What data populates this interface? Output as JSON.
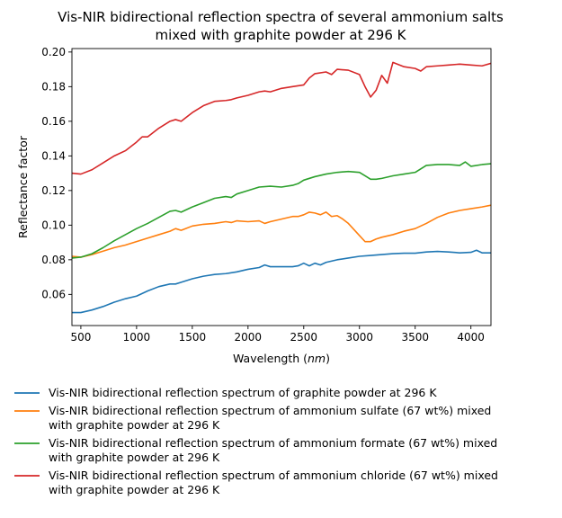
{
  "chart_data": {
    "type": "line",
    "title": "Vis-NIR bidirectional reflection spectra of several ammonium salts mixed with graphite powder at 296 K",
    "title_lines": [
      "Vis-NIR bidirectional reflection spectra of several ammonium salts",
      "mixed with graphite powder at 296 K"
    ],
    "xlabel": "Wavelength (",
    "xlabel_italic": "nm",
    "xlabel_close": ")",
    "ylabel": "Reflectance factor",
    "xlim": [
      420,
      4180
    ],
    "ylim": [
      0.042,
      0.202
    ],
    "xticks": [
      500,
      1000,
      1500,
      2000,
      2500,
      3000,
      3500,
      4000
    ],
    "yticks": [
      0.06,
      0.08,
      0.1,
      0.12,
      0.14,
      0.16,
      0.18,
      0.2
    ],
    "ytick_labels": [
      "0.06",
      "0.08",
      "0.10",
      "0.12",
      "0.14",
      "0.16",
      "0.18",
      "0.20"
    ],
    "grid": false,
    "legend_placement": "below-plot",
    "series": [
      {
        "name": "Vis-NIR bidirectional reflection spectrum of graphite powder at 296 K",
        "legend_lines": [
          "Vis-NIR bidirectional reflection spectrum of graphite powder at 296 K"
        ],
        "color": "#1f77b4",
        "points": [
          [
            420,
            0.0495
          ],
          [
            500,
            0.0495
          ],
          [
            600,
            0.051
          ],
          [
            700,
            0.053
          ],
          [
            800,
            0.0555
          ],
          [
            900,
            0.0575
          ],
          [
            1000,
            0.059
          ],
          [
            1100,
            0.062
          ],
          [
            1200,
            0.0645
          ],
          [
            1300,
            0.066
          ],
          [
            1350,
            0.066
          ],
          [
            1400,
            0.067
          ],
          [
            1500,
            0.069
          ],
          [
            1600,
            0.0705
          ],
          [
            1700,
            0.0715
          ],
          [
            1800,
            0.072
          ],
          [
            1900,
            0.073
          ],
          [
            2000,
            0.0745
          ],
          [
            2100,
            0.0755
          ],
          [
            2150,
            0.077
          ],
          [
            2200,
            0.076
          ],
          [
            2300,
            0.076
          ],
          [
            2400,
            0.076
          ],
          [
            2450,
            0.0765
          ],
          [
            2500,
            0.078
          ],
          [
            2550,
            0.0765
          ],
          [
            2600,
            0.078
          ],
          [
            2650,
            0.077
          ],
          [
            2700,
            0.0785
          ],
          [
            2800,
            0.08
          ],
          [
            2900,
            0.081
          ],
          [
            3000,
            0.082
          ],
          [
            3100,
            0.0825
          ],
          [
            3200,
            0.083
          ],
          [
            3300,
            0.0835
          ],
          [
            3400,
            0.0838
          ],
          [
            3500,
            0.0838
          ],
          [
            3600,
            0.0845
          ],
          [
            3700,
            0.0848
          ],
          [
            3800,
            0.0845
          ],
          [
            3900,
            0.084
          ],
          [
            4000,
            0.0843
          ],
          [
            4050,
            0.0855
          ],
          [
            4100,
            0.084
          ],
          [
            4180,
            0.084
          ]
        ]
      },
      {
        "name": "Vis-NIR bidirectional reflection spectrum of ammonium sulfate (67 wt%) mixed with graphite powder at 296 K",
        "legend_lines": [
          "Vis-NIR bidirectional reflection spectrum of ammonium sulfate (67 wt%) mixed",
          "with graphite powder at 296 K"
        ],
        "color": "#ff7f0e",
        "points": [
          [
            420,
            0.082
          ],
          [
            500,
            0.0815
          ],
          [
            600,
            0.083
          ],
          [
            700,
            0.085
          ],
          [
            800,
            0.087
          ],
          [
            900,
            0.0885
          ],
          [
            1000,
            0.0905
          ],
          [
            1100,
            0.0925
          ],
          [
            1200,
            0.0945
          ],
          [
            1300,
            0.0965
          ],
          [
            1350,
            0.098
          ],
          [
            1400,
            0.097
          ],
          [
            1500,
            0.0995
          ],
          [
            1600,
            0.1005
          ],
          [
            1700,
            0.101
          ],
          [
            1800,
            0.102
          ],
          [
            1850,
            0.1015
          ],
          [
            1900,
            0.1025
          ],
          [
            2000,
            0.102
          ],
          [
            2100,
            0.1025
          ],
          [
            2150,
            0.101
          ],
          [
            2200,
            0.102
          ],
          [
            2300,
            0.1035
          ],
          [
            2400,
            0.105
          ],
          [
            2450,
            0.105
          ],
          [
            2500,
            0.106
          ],
          [
            2550,
            0.1075
          ],
          [
            2600,
            0.107
          ],
          [
            2650,
            0.106
          ],
          [
            2700,
            0.1075
          ],
          [
            2750,
            0.105
          ],
          [
            2800,
            0.1055
          ],
          [
            2850,
            0.1035
          ],
          [
            2900,
            0.101
          ],
          [
            2950,
            0.0975
          ],
          [
            3000,
            0.094
          ],
          [
            3050,
            0.0905
          ],
          [
            3100,
            0.0905
          ],
          [
            3150,
            0.092
          ],
          [
            3200,
            0.093
          ],
          [
            3300,
            0.0945
          ],
          [
            3400,
            0.0965
          ],
          [
            3500,
            0.098
          ],
          [
            3600,
            0.101
          ],
          [
            3700,
            0.1045
          ],
          [
            3800,
            0.107
          ],
          [
            3900,
            0.1085
          ],
          [
            4000,
            0.1095
          ],
          [
            4100,
            0.1105
          ],
          [
            4180,
            0.1115
          ]
        ]
      },
      {
        "name": "Vis-NIR bidirectional reflection spectrum of ammonium formate (67 wt%) mixed with graphite powder at 296 K",
        "legend_lines": [
          "Vis-NIR bidirectional reflection spectrum of ammonium formate (67 wt%) mixed",
          "with graphite powder at 296 K"
        ],
        "color": "#2ca02c",
        "points": [
          [
            420,
            0.081
          ],
          [
            500,
            0.0815
          ],
          [
            600,
            0.0835
          ],
          [
            700,
            0.087
          ],
          [
            800,
            0.091
          ],
          [
            900,
            0.0945
          ],
          [
            1000,
            0.098
          ],
          [
            1100,
            0.101
          ],
          [
            1200,
            0.1045
          ],
          [
            1300,
            0.108
          ],
          [
            1350,
            0.1085
          ],
          [
            1400,
            0.1075
          ],
          [
            1500,
            0.1105
          ],
          [
            1600,
            0.113
          ],
          [
            1700,
            0.1155
          ],
          [
            1800,
            0.1165
          ],
          [
            1850,
            0.116
          ],
          [
            1900,
            0.118
          ],
          [
            2000,
            0.12
          ],
          [
            2100,
            0.122
          ],
          [
            2200,
            0.1225
          ],
          [
            2300,
            0.122
          ],
          [
            2400,
            0.123
          ],
          [
            2450,
            0.124
          ],
          [
            2500,
            0.126
          ],
          [
            2600,
            0.128
          ],
          [
            2700,
            0.1295
          ],
          [
            2800,
            0.1305
          ],
          [
            2900,
            0.131
          ],
          [
            3000,
            0.1305
          ],
          [
            3050,
            0.1285
          ],
          [
            3100,
            0.1265
          ],
          [
            3150,
            0.1265
          ],
          [
            3200,
            0.127
          ],
          [
            3300,
            0.1285
          ],
          [
            3400,
            0.1295
          ],
          [
            3500,
            0.1305
          ],
          [
            3600,
            0.1345
          ],
          [
            3700,
            0.135
          ],
          [
            3800,
            0.135
          ],
          [
            3900,
            0.1345
          ],
          [
            3950,
            0.1365
          ],
          [
            4000,
            0.134
          ],
          [
            4100,
            0.135
          ],
          [
            4180,
            0.1355
          ]
        ]
      },
      {
        "name": "Vis-NIR bidirectional reflection spectrum of ammonium chloride (67 wt%) mixed with graphite powder at 296 K",
        "legend_lines": [
          "Vis-NIR bidirectional reflection spectrum of ammonium chloride (67 wt%) mixed",
          "with graphite powder at 296 K"
        ],
        "color": "#d62728",
        "points": [
          [
            420,
            0.13
          ],
          [
            500,
            0.1295
          ],
          [
            600,
            0.132
          ],
          [
            700,
            0.136
          ],
          [
            800,
            0.14
          ],
          [
            900,
            0.143
          ],
          [
            1000,
            0.148
          ],
          [
            1050,
            0.151
          ],
          [
            1100,
            0.151
          ],
          [
            1200,
            0.156
          ],
          [
            1300,
            0.16
          ],
          [
            1350,
            0.161
          ],
          [
            1400,
            0.16
          ],
          [
            1500,
            0.165
          ],
          [
            1600,
            0.169
          ],
          [
            1700,
            0.1715
          ],
          [
            1800,
            0.172
          ],
          [
            1850,
            0.1725
          ],
          [
            1900,
            0.1735
          ],
          [
            2000,
            0.175
          ],
          [
            2100,
            0.177
          ],
          [
            2150,
            0.1775
          ],
          [
            2200,
            0.177
          ],
          [
            2300,
            0.179
          ],
          [
            2400,
            0.18
          ],
          [
            2500,
            0.181
          ],
          [
            2550,
            0.185
          ],
          [
            2600,
            0.1875
          ],
          [
            2700,
            0.1885
          ],
          [
            2750,
            0.187
          ],
          [
            2800,
            0.19
          ],
          [
            2900,
            0.1895
          ],
          [
            3000,
            0.187
          ],
          [
            3050,
            0.18
          ],
          [
            3100,
            0.174
          ],
          [
            3150,
            0.178
          ],
          [
            3200,
            0.1865
          ],
          [
            3250,
            0.182
          ],
          [
            3300,
            0.194
          ],
          [
            3400,
            0.1915
          ],
          [
            3500,
            0.1905
          ],
          [
            3550,
            0.189
          ],
          [
            3600,
            0.1915
          ],
          [
            3700,
            0.192
          ],
          [
            3800,
            0.1925
          ],
          [
            3900,
            0.193
          ],
          [
            4000,
            0.1925
          ],
          [
            4100,
            0.192
          ],
          [
            4180,
            0.1935
          ]
        ]
      }
    ]
  }
}
